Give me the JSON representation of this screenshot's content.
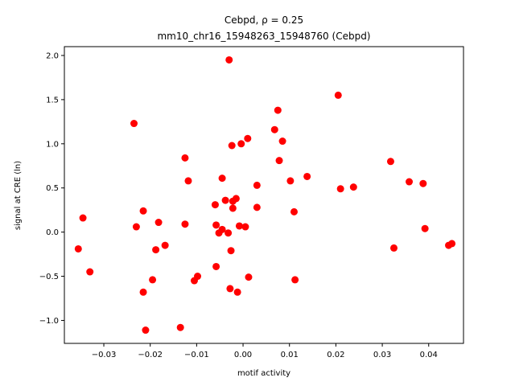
{
  "chart_data": {
    "type": "scatter",
    "title_line1": "Cebpd, ρ = 0.25",
    "title_line2": "mm10_chr16_15948263_15948760 (Cebpd)",
    "xlabel": "motif activity",
    "ylabel": "signal at CRE (ln)",
    "xlim": [
      -0.0385,
      0.0475
    ],
    "ylim": [
      -1.26,
      2.1
    ],
    "xticks": [
      -0.03,
      -0.02,
      -0.01,
      0.0,
      0.01,
      0.02,
      0.03,
      0.04
    ],
    "xtick_labels": [
      "−0.03",
      "−0.02",
      "−0.01",
      "0.00",
      "0.01",
      "0.02",
      "0.03",
      "0.04"
    ],
    "yticks": [
      -1.0,
      -0.5,
      0.0,
      0.5,
      1.0,
      1.5,
      2.0
    ],
    "ytick_labels": [
      "−1.0",
      "−0.5",
      "0.0",
      "0.5",
      "1.0",
      "1.5",
      "2.0"
    ],
    "marker_color": "#ff0000",
    "grid": false,
    "points": [
      {
        "x": -0.0355,
        "y": -0.19
      },
      {
        "x": -0.0345,
        "y": 0.16
      },
      {
        "x": -0.033,
        "y": -0.45
      },
      {
        "x": -0.0235,
        "y": 1.23
      },
      {
        "x": -0.023,
        "y": 0.06
      },
      {
        "x": -0.0215,
        "y": 0.24
      },
      {
        "x": -0.0215,
        "y": -0.68
      },
      {
        "x": -0.021,
        "y": -1.11
      },
      {
        "x": -0.0195,
        "y": -0.54
      },
      {
        "x": -0.0188,
        "y": -0.2
      },
      {
        "x": -0.0182,
        "y": 0.11
      },
      {
        "x": -0.0168,
        "y": -0.15
      },
      {
        "x": -0.0135,
        "y": -1.08
      },
      {
        "x": -0.0125,
        "y": 0.84
      },
      {
        "x": -0.0125,
        "y": 0.09
      },
      {
        "x": -0.0118,
        "y": 0.58
      },
      {
        "x": -0.0105,
        "y": -0.55
      },
      {
        "x": -0.0098,
        "y": -0.5
      },
      {
        "x": -0.006,
        "y": 0.31
      },
      {
        "x": -0.0058,
        "y": 0.08
      },
      {
        "x": -0.0058,
        "y": -0.39
      },
      {
        "x": -0.0052,
        "y": -0.01
      },
      {
        "x": -0.0045,
        "y": 0.61
      },
      {
        "x": -0.0045,
        "y": 0.03
      },
      {
        "x": -0.0038,
        "y": 0.36
      },
      {
        "x": -0.0032,
        "y": -0.01
      },
      {
        "x": -0.003,
        "y": 1.95
      },
      {
        "x": -0.0028,
        "y": -0.64
      },
      {
        "x": -0.0026,
        "y": -0.21
      },
      {
        "x": -0.0024,
        "y": 0.98
      },
      {
        "x": -0.0022,
        "y": 0.35
      },
      {
        "x": -0.0022,
        "y": 0.27
      },
      {
        "x": -0.0015,
        "y": 0.38
      },
      {
        "x": -0.0012,
        "y": -0.68
      },
      {
        "x": -0.0008,
        "y": 0.07
      },
      {
        "x": -0.0004,
        "y": 1.0
      },
      {
        "x": 0.0005,
        "y": 0.06
      },
      {
        "x": 0.001,
        "y": 1.06
      },
      {
        "x": 0.0012,
        "y": -0.51
      },
      {
        "x": 0.003,
        "y": 0.53
      },
      {
        "x": 0.003,
        "y": 0.28
      },
      {
        "x": 0.0068,
        "y": 1.16
      },
      {
        "x": 0.0075,
        "y": 1.38
      },
      {
        "x": 0.0078,
        "y": 0.81
      },
      {
        "x": 0.0085,
        "y": 1.03
      },
      {
        "x": 0.0102,
        "y": 0.58
      },
      {
        "x": 0.011,
        "y": 0.23
      },
      {
        "x": 0.0112,
        "y": -0.54
      },
      {
        "x": 0.0138,
        "y": 0.63
      },
      {
        "x": 0.0205,
        "y": 1.55
      },
      {
        "x": 0.021,
        "y": 0.49
      },
      {
        "x": 0.0238,
        "y": 0.51
      },
      {
        "x": 0.0318,
        "y": 0.8
      },
      {
        "x": 0.0325,
        "y": -0.18
      },
      {
        "x": 0.0358,
        "y": 0.57
      },
      {
        "x": 0.0388,
        "y": 0.55
      },
      {
        "x": 0.0392,
        "y": 0.04
      },
      {
        "x": 0.0443,
        "y": -0.15
      },
      {
        "x": 0.045,
        "y": -0.13
      }
    ]
  }
}
